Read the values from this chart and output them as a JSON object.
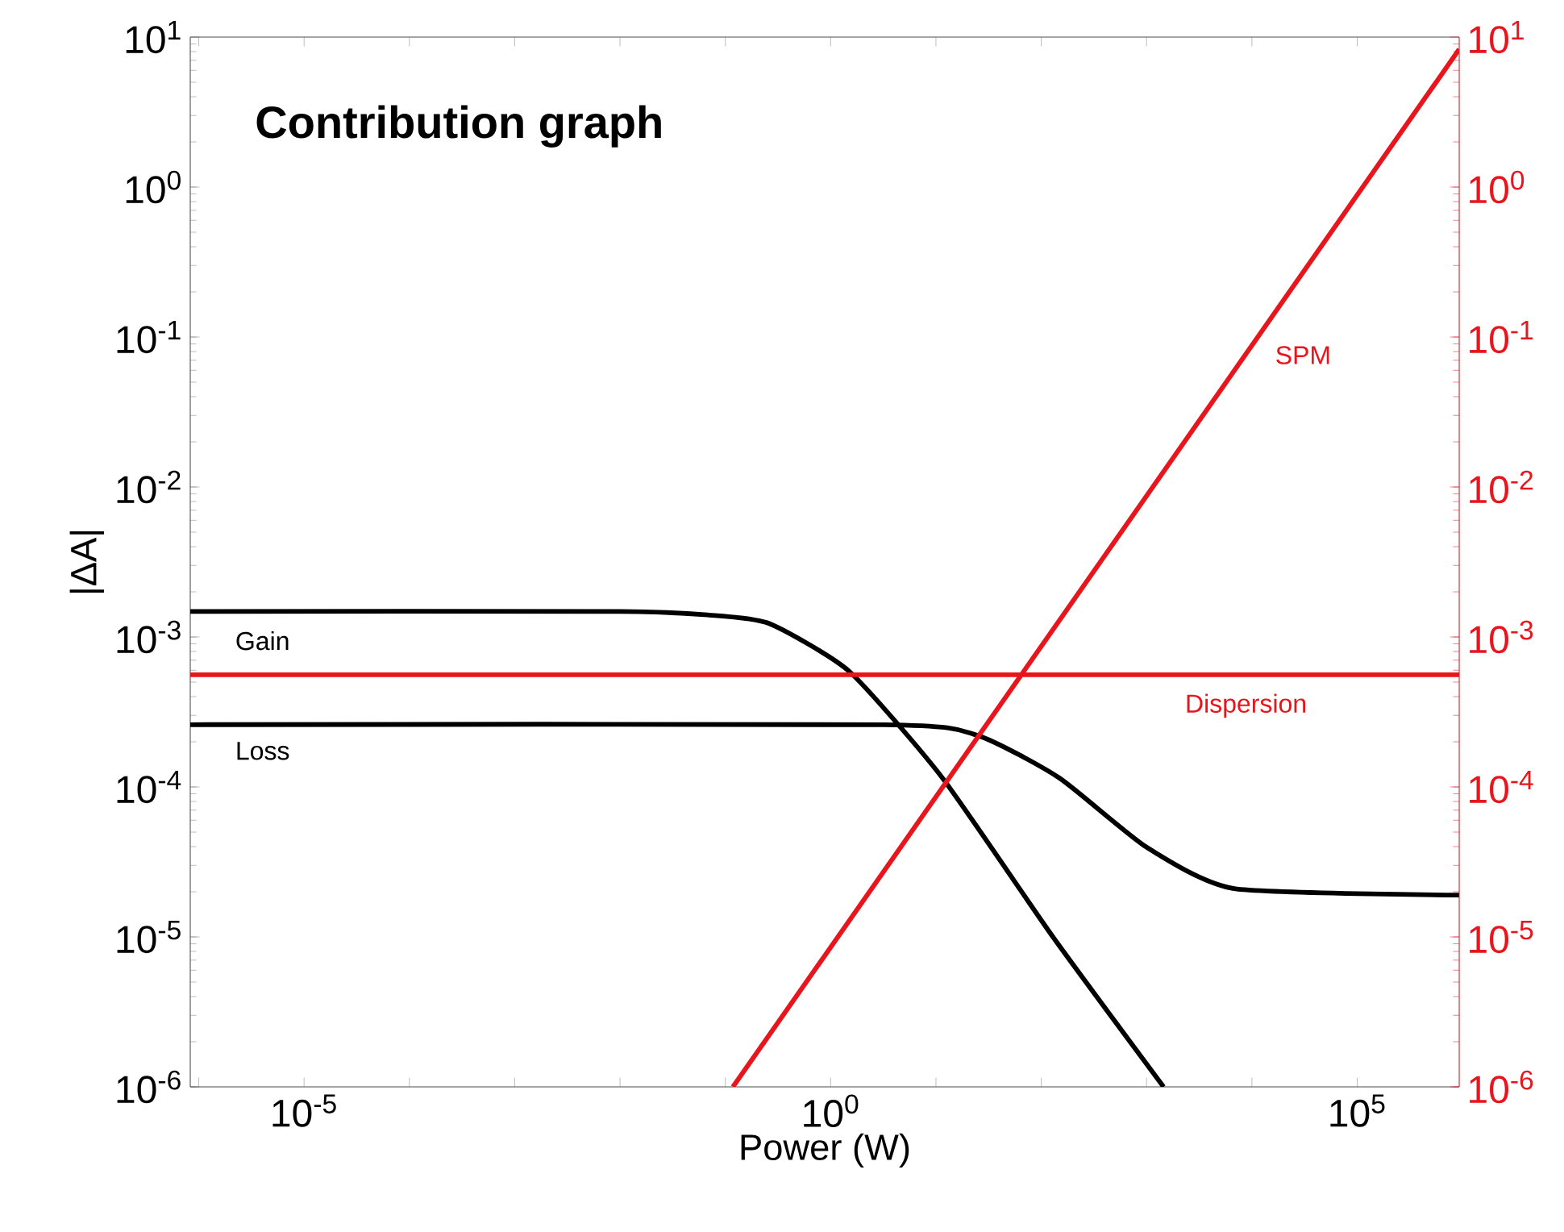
{
  "chart_data": {
    "type": "line",
    "title": "Contribution graph",
    "xlabel": "Power (W)",
    "ylabel": "|ΔA|",
    "log": "xy",
    "xlim": [
      8.3e-07,
      930000
    ],
    "ylim": [
      1e-06,
      10
    ],
    "xticks": [
      {
        "value": 1e-06,
        "label": null
      },
      {
        "value": 1e-05,
        "label": "10$^{-5}$"
      },
      {
        "value": 0.0001,
        "label": null
      },
      {
        "value": 0.001,
        "label": null
      },
      {
        "value": 0.01,
        "label": null
      },
      {
        "value": 0.1,
        "label": null
      },
      {
        "value": 1,
        "label": "10$^{0}$"
      },
      {
        "value": 10,
        "label": null
      },
      {
        "value": 100,
        "label": null
      },
      {
        "value": 1000,
        "label": null
      },
      {
        "value": 10000,
        "label": null
      },
      {
        "value": 100000,
        "label": "10$^{5}$"
      }
    ],
    "yticks": [
      {
        "value": 1e-06,
        "label": "10$^{-6}$"
      },
      {
        "value": 1e-05,
        "label": "10$^{-5}$"
      },
      {
        "value": 0.0001,
        "label": "10$^{-4}$"
      },
      {
        "value": 0.001,
        "label": "10$^{-3}$"
      },
      {
        "value": 0.01,
        "label": "10$^{-2}$"
      },
      {
        "value": 0.1,
        "label": "10$^{-1}$"
      },
      {
        "value": 1,
        "label": "10$^{0}$"
      },
      {
        "value": 10,
        "label": "10$^{1}$"
      }
    ],
    "grid": false,
    "line_style": "solid",
    "marker": "none",
    "series": [
      {
        "name": "Gain",
        "color": "#000000",
        "x": [
          8.3e-07,
          0.01,
          0.07,
          0.26,
          1.5,
          11.5,
          129,
          1450
        ],
        "values": [
          0.00148,
          0.00148,
          0.0014,
          0.00123,
          0.00059,
          0.000115,
          1e-05,
          1e-06
        ]
      },
      {
        "name": "Loss",
        "color": "#000000",
        "x": [
          8.3e-07,
          3.2,
          25,
          148,
          980,
          6800,
          930000
        ],
        "values": [
          0.00026,
          0.00026,
          0.00022,
          0.000115,
          4e-05,
          2.1e-05,
          1.9e-05
        ]
      },
      {
        "name": "Dispersion",
        "color": "#e8151c",
        "x": [
          8.3e-07,
          930000
        ],
        "values": [
          0.00056,
          0.00056
        ]
      },
      {
        "name": "SPM",
        "color": "#e8151c",
        "x": [
          0.118,
          930000
        ],
        "values": [
          1e-06,
          8.3
        ]
      }
    ]
  }
}
